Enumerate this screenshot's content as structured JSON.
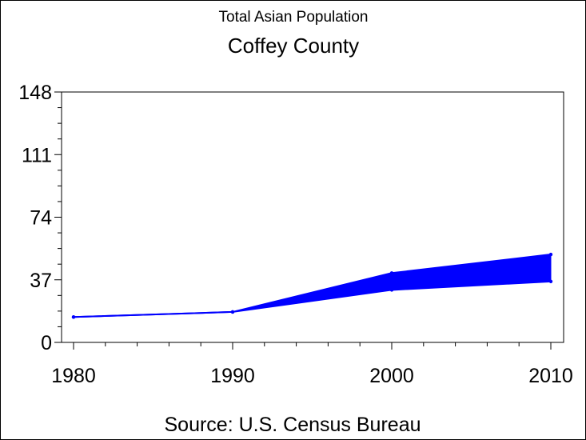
{
  "chart_data": {
    "type": "area",
    "title": "Total Asian Population",
    "subtitle": "Coffey County",
    "source": "Source: U.S. Census Bureau",
    "x_ticks": [
      "1980",
      "1990",
      "2000",
      "2010"
    ],
    "y_ticks": [
      "0",
      "37",
      "74",
      "111",
      "148"
    ],
    "ylim": [
      0,
      148
    ],
    "xlim": [
      1980,
      2010
    ],
    "grid": false,
    "series": [
      {
        "x": [
          1980,
          1990,
          2000,
          2010
        ],
        "values": [
          15,
          18,
          41,
          52
        ]
      },
      {
        "x": [
          1980,
          1990,
          2000,
          2010
        ],
        "values": [
          15,
          18,
          31,
          36
        ]
      }
    ],
    "color": "#0000ff"
  }
}
